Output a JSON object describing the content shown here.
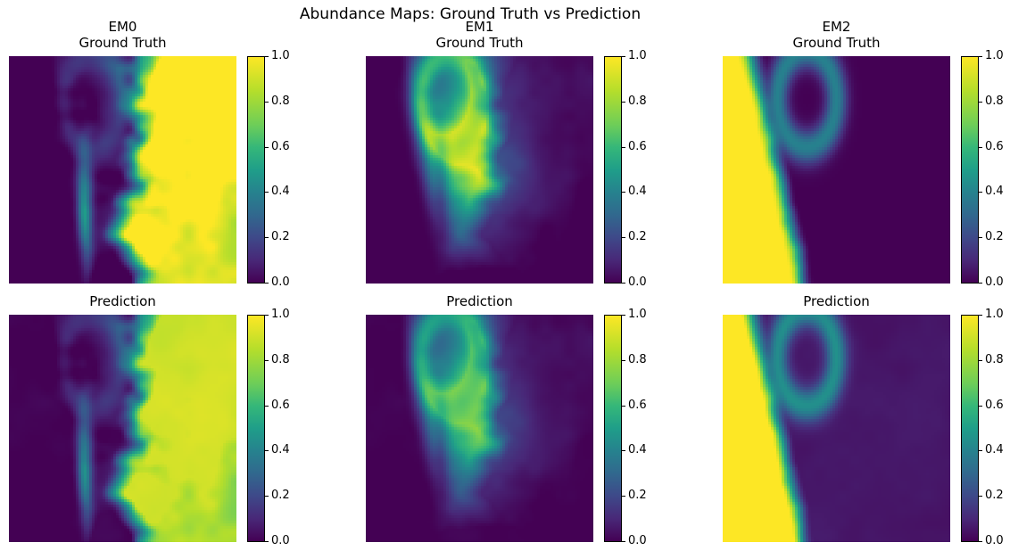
{
  "suptitle": "Abundance Maps: Ground Truth vs Prediction",
  "chart_data": {
    "type": "heatmap",
    "colormap": "viridis",
    "clim": [
      0,
      1
    ],
    "colorbar_ticks": [
      "0.0",
      "0.2",
      "0.4",
      "0.6",
      "0.8",
      "1.0"
    ],
    "axes_visible": false,
    "panels": [
      {
        "id": "em0-gt",
        "endmember": "EM0",
        "kind": "gt",
        "title_lines": [
          "EM0",
          "Ground Truth"
        ]
      },
      {
        "id": "em1-gt",
        "endmember": "EM1",
        "kind": "gt",
        "title_lines": [
          "EM1",
          "Ground Truth"
        ]
      },
      {
        "id": "em2-gt",
        "endmember": "EM2",
        "kind": "gt",
        "title_lines": [
          "EM2",
          "Ground Truth"
        ]
      },
      {
        "id": "em0-pred",
        "endmember": "EM0",
        "kind": "pred",
        "title_lines": [
          "Prediction"
        ]
      },
      {
        "id": "em1-pred",
        "endmember": "EM1",
        "kind": "pred",
        "title_lines": [
          "Prediction"
        ]
      },
      {
        "id": "em2-pred",
        "endmember": "EM2",
        "kind": "pred",
        "title_lines": [
          "Prediction"
        ]
      }
    ]
  }
}
